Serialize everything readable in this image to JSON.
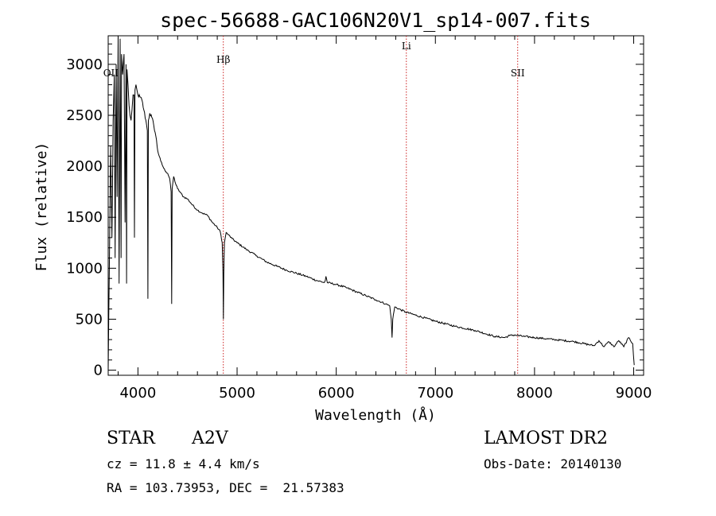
{
  "chart_data": {
    "type": "line",
    "title": "spec-56688-GAC106N20V1_sp14-007.fits",
    "xlabel": "Wavelength (Å)",
    "ylabel": "Flux (relative)",
    "xlim": [
      3700,
      9100
    ],
    "ylim": [
      -50,
      3280
    ],
    "xticks": [
      4000,
      5000,
      6000,
      7000,
      8000,
      9000
    ],
    "yticks": [
      0,
      500,
      1000,
      1500,
      2000,
      2500,
      3000
    ],
    "grid": false,
    "series": [
      {
        "values_note": "flux spectrum",
        "x": [
          3700,
          3712,
          3725,
          3738,
          3750,
          3762,
          3770,
          3780,
          3790,
          3800,
          3810,
          3820,
          3830,
          3835,
          3845,
          3860,
          3870,
          3880,
          3885,
          3890,
          3900,
          3910,
          3920,
          3930,
          3940,
          3950,
          3960,
          3965,
          3970,
          3980,
          3990,
          4000,
          4020,
          4040,
          4060,
          4080,
          4095,
          4100,
          4105,
          4120,
          4140,
          4160,
          4180,
          4200,
          4230,
          4260,
          4280,
          4300,
          4320,
          4335,
          4340,
          4345,
          4360,
          4380,
          4400,
          4430,
          4460,
          4500,
          4550,
          4600,
          4650,
          4700,
          4750,
          4800,
          4830,
          4850,
          4858,
          4862,
          4866,
          4872,
          4890,
          4910,
          4950,
          5000,
          5100,
          5200,
          5300,
          5400,
          5500,
          5600,
          5700,
          5800,
          5880,
          5890,
          5896,
          5910,
          6000,
          6100,
          6200,
          6300,
          6400,
          6500,
          6540,
          6555,
          6563,
          6570,
          6590,
          6700,
          6800,
          7000,
          7200,
          7400,
          7600,
          7700,
          7750,
          7800,
          7900,
          8000,
          8200,
          8400,
          8600,
          8650,
          8700,
          8750,
          8800,
          8850,
          8900,
          8950,
          8990,
          9005
        ],
        "y": [
          0,
          1050,
          2200,
          1300,
          2450,
          2900,
          1100,
          3000,
          1700,
          3280,
          850,
          3250,
          1100,
          3100,
          2900,
          3100,
          1450,
          3000,
          850,
          2950,
          2800,
          2600,
          2500,
          2450,
          2550,
          2700,
          2700,
          1300,
          2750,
          2800,
          2750,
          2700,
          2680,
          2650,
          2550,
          2450,
          2350,
          700,
          2450,
          2520,
          2480,
          2400,
          2300,
          2150,
          2050,
          1980,
          1950,
          1930,
          1880,
          1750,
          650,
          1780,
          1900,
          1830,
          1780,
          1740,
          1700,
          1680,
          1620,
          1570,
          1540,
          1520,
          1450,
          1400,
          1360,
          1250,
          950,
          500,
          950,
          1250,
          1350,
          1330,
          1290,
          1250,
          1180,
          1120,
          1060,
          1020,
          980,
          950,
          920,
          880,
          860,
          880,
          920,
          860,
          840,
          810,
          770,
          730,
          690,
          650,
          630,
          500,
          320,
          500,
          620,
          570,
          540,
          480,
          430,
          390,
          330,
          320,
          340,
          345,
          330,
          320,
          300,
          280,
          240,
          290,
          230,
          280,
          230,
          290,
          230,
          320,
          260,
          50
        ]
      }
    ],
    "annotations": [
      {
        "label": "OII",
        "x": 3727
      },
      {
        "label": "Hβ",
        "x": 4861
      },
      {
        "label": "Li",
        "x": 6707
      },
      {
        "label": "SII",
        "x": 7830
      }
    ]
  },
  "info": {
    "class": "STAR",
    "subclass": "A2V",
    "cz": "cz = 11.8 ± 4.4 km/s",
    "coords": "RA = 103.73953, DEC =  21.57383",
    "survey": "LAMOST DR2",
    "obs_date": "Obs-Date: 20140130"
  },
  "colors": {
    "spectrum": "#000000",
    "marker": "#cc2222",
    "axes": "#000000"
  }
}
